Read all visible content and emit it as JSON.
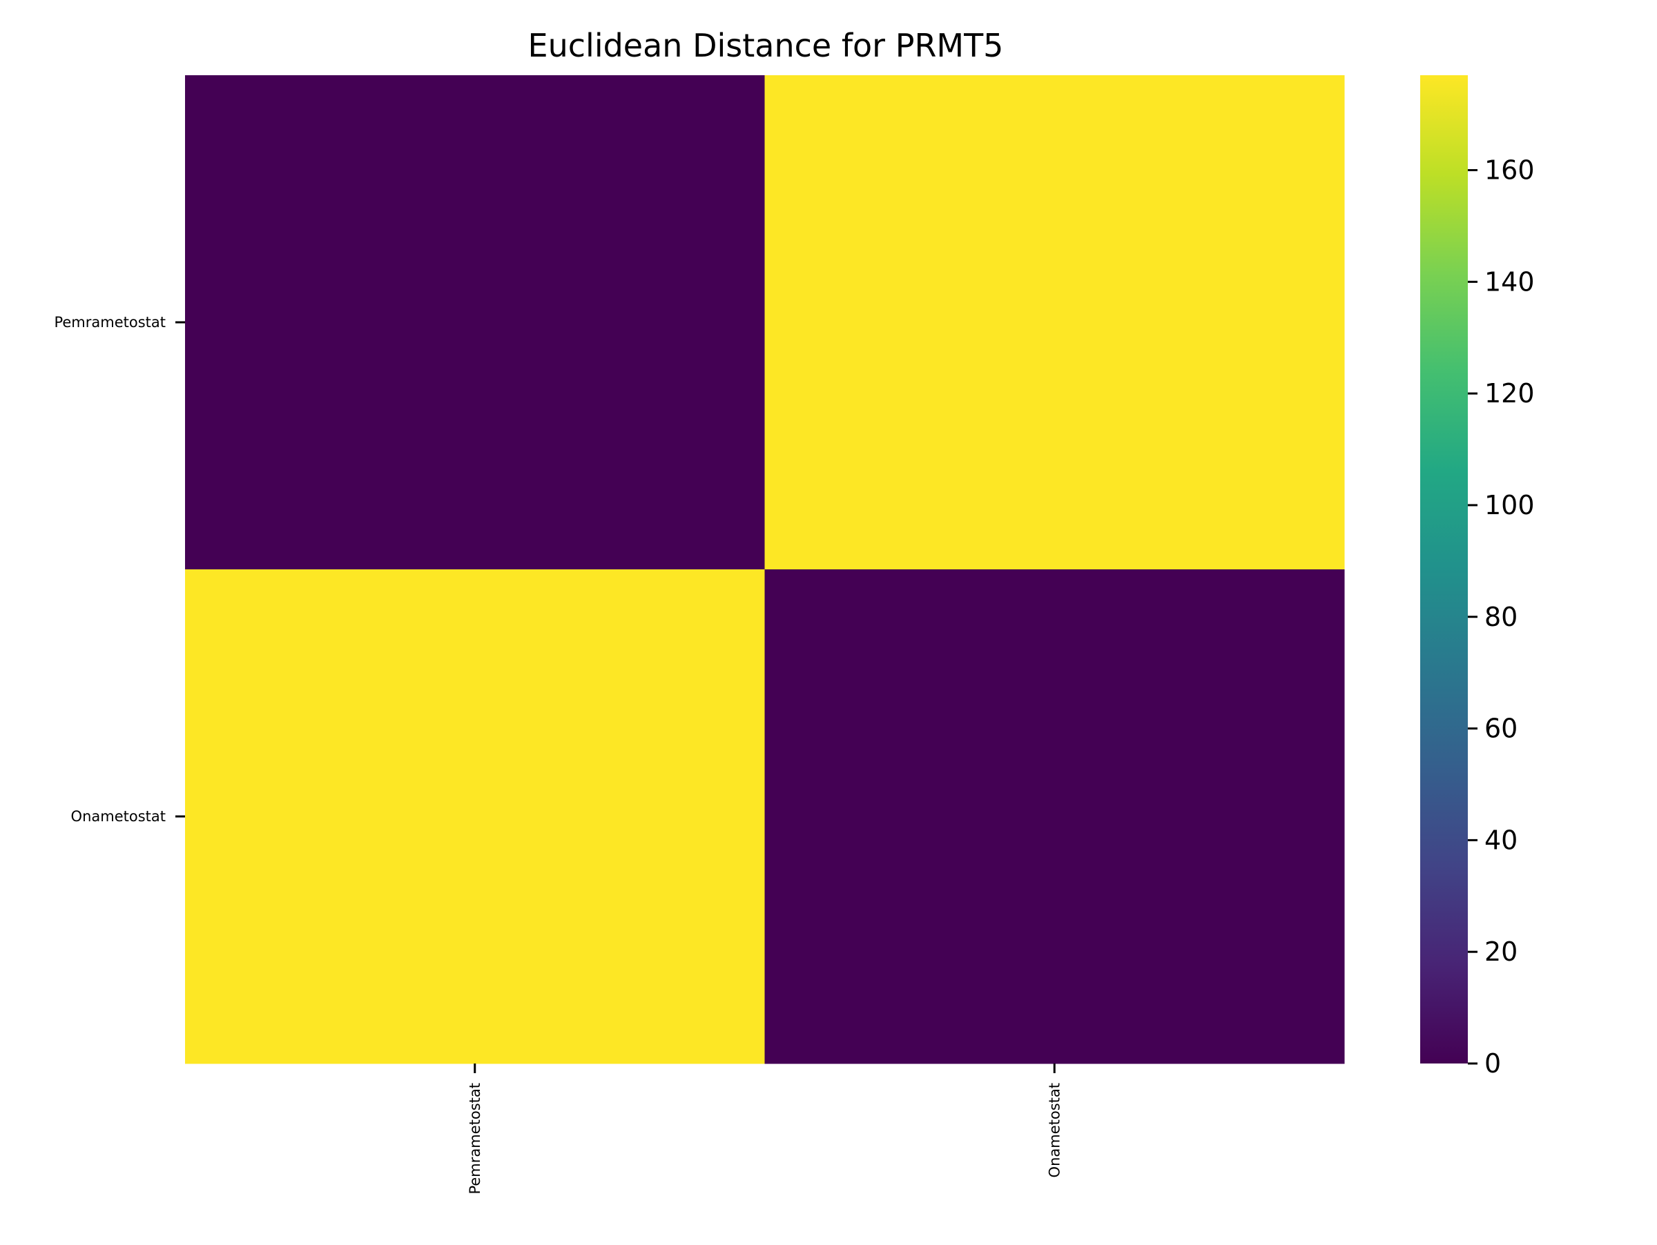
{
  "chart_data": {
    "type": "heatmap",
    "title": "Euclidean Distance for PRMT5",
    "xlabel": "",
    "ylabel": "",
    "x_categories": [
      "Pemrametostat",
      "Onametostat"
    ],
    "y_categories": [
      "Pemrametostat",
      "Onametostat"
    ],
    "values": [
      [
        0,
        177
      ],
      [
        177,
        0
      ]
    ],
    "colormap": "viridis",
    "colorbar": {
      "min": 0,
      "max": 177,
      "ticks": [
        0,
        20,
        40,
        60,
        80,
        100,
        120,
        140,
        160
      ]
    },
    "colors": {
      "low": "#440154",
      "high": "#fde725"
    },
    "grid": false,
    "legend": "colorbar-right"
  }
}
